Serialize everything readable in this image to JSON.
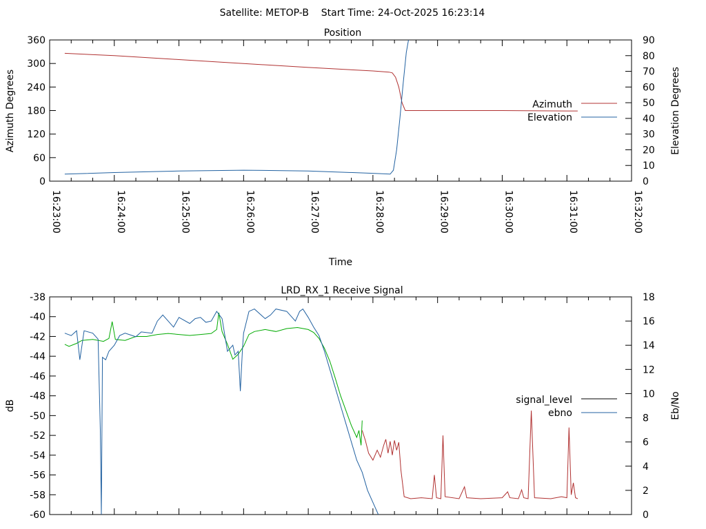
{
  "header": {
    "title": "Satellite: METOP-B    Start Time: 24-Oct-2025 16:23:14"
  },
  "chart_data": [
    {
      "type": "line",
      "title": "Position",
      "xlabel": "Time",
      "ylabel": "Azimuth Degrees",
      "y2label": "Elevation Degrees",
      "x_ticks": [
        "16:23:00",
        "16:24:00",
        "16:25:00",
        "16:26:00",
        "16:27:00",
        "16:28:00",
        "16:29:00",
        "16:30:00",
        "16:31:00",
        "16:32:00"
      ],
      "xlim": [
        "16:23:00",
        "16:32:00"
      ],
      "ylim": [
        0,
        360
      ],
      "y_ticks": [
        0,
        60,
        120,
        180,
        240,
        300,
        360
      ],
      "y2lim": [
        0,
        90
      ],
      "y2_ticks": [
        0,
        10,
        20,
        30,
        40,
        50,
        60,
        70,
        80,
        90
      ],
      "legend_position": "right",
      "series": [
        {
          "name": "Azimuth",
          "axis": "left",
          "color": "#b03030",
          "points": [
            [
              "16:23:14",
              326
            ],
            [
              "16:24:00",
              320
            ],
            [
              "16:25:00",
              310
            ],
            [
              "16:26:00",
              300
            ],
            [
              "16:27:00",
              290
            ],
            [
              "16:28:00",
              281
            ],
            [
              "16:28:15",
              278
            ],
            [
              "16:28:18",
              276
            ],
            [
              "16:28:21",
              265
            ],
            [
              "16:28:24",
              240
            ],
            [
              "16:28:27",
              200
            ],
            [
              "16:28:30",
              180
            ],
            [
              "16:29:00",
              180
            ],
            [
              "16:30:00",
              180
            ],
            [
              "16:31:00",
              179
            ],
            [
              "16:31:10",
              179
            ]
          ]
        },
        {
          "name": "Elevation",
          "axis": "right",
          "color": "#2060a0",
          "points": [
            [
              "16:23:14",
              4.5
            ],
            [
              "16:24:00",
              5.5
            ],
            [
              "16:25:00",
              6.5
            ],
            [
              "16:26:00",
              7
            ],
            [
              "16:27:00",
              6.5
            ],
            [
              "16:28:00",
              5
            ],
            [
              "16:28:16",
              4.5
            ],
            [
              "16:28:19",
              7
            ],
            [
              "16:28:22",
              20
            ],
            [
              "16:28:25",
              40
            ],
            [
              "16:28:28",
              62
            ],
            [
              "16:28:31",
              82
            ],
            [
              "16:28:33",
              90
            ]
          ]
        }
      ]
    },
    {
      "type": "line",
      "title": "LRD_RX_1 Receive Signal",
      "ylabel": "dB",
      "y2label": "Eb/No",
      "xlim": [
        "16:23:00",
        "16:32:00"
      ],
      "ylim": [
        -60,
        -38
      ],
      "y_ticks": [
        -60,
        -58,
        -56,
        -54,
        -52,
        -50,
        -48,
        -46,
        -44,
        -42,
        -40,
        -38
      ],
      "y2lim": [
        0,
        18
      ],
      "y2_ticks": [
        0,
        2,
        4,
        6,
        8,
        10,
        12,
        14,
        16,
        18
      ],
      "legend_position": "right",
      "legend": [
        {
          "name": "signal_level",
          "color": "#000000"
        },
        {
          "name": "ebno",
          "color": "#2060a0"
        }
      ],
      "series": [
        {
          "name": "signal_level",
          "axis": "left",
          "segments": [
            {
              "color": "#00aa00",
              "points": [
                [
                  "16:23:14",
                  -42.8
                ],
                [
                  "16:23:18",
                  -43.0
                ],
                [
                  "16:23:25",
                  -42.7
                ],
                [
                  "16:23:30",
                  -42.4
                ],
                [
                  "16:23:40",
                  -42.3
                ],
                [
                  "16:23:50",
                  -42.5
                ],
                [
                  "16:23:55",
                  -42.2
                ],
                [
                  "16:23:58",
                  -40.5
                ],
                [
                  "16:24:01",
                  -42.3
                ],
                [
                  "16:24:10",
                  -42.4
                ],
                [
                  "16:24:20",
                  -42.0
                ],
                [
                  "16:24:30",
                  -42.0
                ],
                [
                  "16:24:40",
                  -41.8
                ],
                [
                  "16:24:50",
                  -41.7
                ],
                [
                  "16:25:00",
                  -41.8
                ],
                [
                  "16:25:10",
                  -41.9
                ],
                [
                  "16:25:20",
                  -41.8
                ],
                [
                  "16:25:30",
                  -41.7
                ],
                [
                  "16:25:35",
                  -41.3
                ],
                [
                  "16:25:37",
                  -39.6
                ],
                [
                  "16:25:40",
                  -41.5
                ],
                [
                  "16:25:45",
                  -42.8
                ],
                [
                  "16:25:50",
                  -44.3
                ],
                [
                  "16:25:55",
                  -43.8
                ],
                [
                  "16:26:00",
                  -43.0
                ],
                [
                  "16:26:05",
                  -41.8
                ],
                [
                  "16:26:10",
                  -41.5
                ],
                [
                  "16:26:20",
                  -41.3
                ],
                [
                  "16:26:30",
                  -41.5
                ],
                [
                  "16:26:40",
                  -41.2
                ],
                [
                  "16:26:50",
                  -41.1
                ],
                [
                  "16:27:00",
                  -41.3
                ],
                [
                  "16:27:05",
                  -41.6
                ],
                [
                  "16:27:10",
                  -42.2
                ],
                [
                  "16:27:15",
                  -43.2
                ],
                [
                  "16:27:20",
                  -44.5
                ],
                [
                  "16:27:25",
                  -46.2
                ],
                [
                  "16:27:30",
                  -48.0
                ],
                [
                  "16:27:35",
                  -49.5
                ],
                [
                  "16:27:40",
                  -51.0
                ],
                [
                  "16:27:45",
                  -52.2
                ],
                [
                  "16:27:47",
                  -51.5
                ],
                [
                  "16:27:49",
                  -53.0
                ],
                [
                  "16:27:50",
                  -50.5
                ]
              ]
            },
            {
              "color": "#b03030",
              "points": [
                [
                  "16:27:50",
                  -51.5
                ],
                [
                  "16:27:53",
                  -52.5
                ],
                [
                  "16:27:56",
                  -53.8
                ],
                [
                  "16:28:00",
                  -54.5
                ],
                [
                  "16:28:04",
                  -53.5
                ],
                [
                  "16:28:07",
                  -54.2
                ],
                [
                  "16:28:10",
                  -53.0
                ],
                [
                  "16:28:12",
                  -52.4
                ],
                [
                  "16:28:14",
                  -53.8
                ],
                [
                  "16:28:16",
                  -52.6
                ],
                [
                  "16:28:18",
                  -54.0
                ],
                [
                  "16:28:20",
                  -52.5
                ],
                [
                  "16:28:22",
                  -53.5
                ],
                [
                  "16:28:24",
                  -52.7
                ],
                [
                  "16:28:26",
                  -55.5
                ],
                [
                  "16:28:29",
                  -58.2
                ],
                [
                  "16:28:35",
                  -58.4
                ],
                [
                  "16:28:45",
                  -58.3
                ],
                [
                  "16:28:55",
                  -58.4
                ],
                [
                  "16:28:57",
                  -56.0
                ],
                [
                  "16:28:59",
                  -58.3
                ],
                [
                  "16:29:03",
                  -58.4
                ],
                [
                  "16:29:05",
                  -52.0
                ],
                [
                  "16:29:07",
                  -58.2
                ],
                [
                  "16:29:20",
                  -58.4
                ],
                [
                  "16:29:25",
                  -57.2
                ],
                [
                  "16:29:27",
                  -58.3
                ],
                [
                  "16:29:40",
                  -58.4
                ],
                [
                  "16:30:00",
                  -58.3
                ],
                [
                  "16:30:05",
                  -57.7
                ],
                [
                  "16:30:07",
                  -58.3
                ],
                [
                  "16:30:15",
                  -58.4
                ],
                [
                  "16:30:18",
                  -57.5
                ],
                [
                  "16:30:20",
                  -58.3
                ],
                [
                  "16:30:24",
                  -58.4
                ],
                [
                  "16:30:27",
                  -49.5
                ],
                [
                  "16:30:30",
                  -58.3
                ],
                [
                  "16:30:45",
                  -58.4
                ],
                [
                  "16:30:55",
                  -58.2
                ],
                [
                  "16:31:00",
                  -58.3
                ],
                [
                  "16:31:02",
                  -51.2
                ],
                [
                  "16:31:04",
                  -58.0
                ],
                [
                  "16:31:06",
                  -56.8
                ],
                [
                  "16:31:08",
                  -58.3
                ],
                [
                  "16:31:10",
                  -58.4
                ]
              ]
            }
          ]
        },
        {
          "name": "ebno",
          "axis": "right",
          "color": "#2060a0",
          "points": [
            [
              "16:23:14",
              15.0
            ],
            [
              "16:23:20",
              14.8
            ],
            [
              "16:23:25",
              15.2
            ],
            [
              "16:23:28",
              12.8
            ],
            [
              "16:23:32",
              15.2
            ],
            [
              "16:23:40",
              15.0
            ],
            [
              "16:23:45",
              14.5
            ],
            [
              "16:23:47",
              7.0
            ],
            [
              "16:23:48",
              0.0
            ],
            [
              "16:23:49",
              13.0
            ],
            [
              "16:23:52",
              12.8
            ],
            [
              "16:23:55",
              13.5
            ],
            [
              "16:24:00",
              14.0
            ],
            [
              "16:24:05",
              14.8
            ],
            [
              "16:24:10",
              15.0
            ],
            [
              "16:24:20",
              14.7
            ],
            [
              "16:24:25",
              15.1
            ],
            [
              "16:24:35",
              15.0
            ],
            [
              "16:24:40",
              16.0
            ],
            [
              "16:24:45",
              16.5
            ],
            [
              "16:24:50",
              16.0
            ],
            [
              "16:24:55",
              15.5
            ],
            [
              "16:25:00",
              16.3
            ],
            [
              "16:25:10",
              15.8
            ],
            [
              "16:25:15",
              16.2
            ],
            [
              "16:25:20",
              16.3
            ],
            [
              "16:25:25",
              15.9
            ],
            [
              "16:25:30",
              16.0
            ],
            [
              "16:25:35",
              16.8
            ],
            [
              "16:25:40",
              16.2
            ],
            [
              "16:25:45",
              13.5
            ],
            [
              "16:25:50",
              14.0
            ],
            [
              "16:25:52",
              13.2
            ],
            [
              "16:25:55",
              13.5
            ],
            [
              "16:25:57",
              10.2
            ],
            [
              "16:25:59",
              13.8
            ],
            [
              "16:26:00",
              15.0
            ],
            [
              "16:26:05",
              16.8
            ],
            [
              "16:26:10",
              17.0
            ],
            [
              "16:26:20",
              16.2
            ],
            [
              "16:26:25",
              16.5
            ],
            [
              "16:26:30",
              17.0
            ],
            [
              "16:26:40",
              16.8
            ],
            [
              "16:26:45",
              16.3
            ],
            [
              "16:26:48",
              16.0
            ],
            [
              "16:26:52",
              16.8
            ],
            [
              "16:26:55",
              17.0
            ],
            [
              "16:27:00",
              16.3
            ],
            [
              "16:27:05",
              15.5
            ],
            [
              "16:27:10",
              14.8
            ],
            [
              "16:27:15",
              13.5
            ],
            [
              "16:27:20",
              12.0
            ],
            [
              "16:27:25",
              10.5
            ],
            [
              "16:27:30",
              9.0
            ],
            [
              "16:27:35",
              7.5
            ],
            [
              "16:27:40",
              6.0
            ],
            [
              "16:27:45",
              4.5
            ],
            [
              "16:27:50",
              3.5
            ],
            [
              "16:27:55",
              2.0
            ],
            [
              "16:28:00",
              1.0
            ],
            [
              "16:28:05",
              0.0
            ]
          ]
        }
      ]
    }
  ]
}
